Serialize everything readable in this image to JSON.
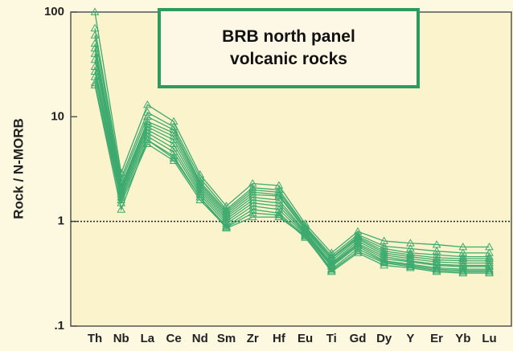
{
  "chart_data": {
    "type": "line",
    "title": "BRB north panel volcanic rocks",
    "y_label": "Rock / N-MORB",
    "categories": [
      "Th",
      "Nb",
      "La",
      "Ce",
      "Nd",
      "Sm",
      "Zr",
      "Hf",
      "Eu",
      "Ti",
      "Gd",
      "Dy",
      "Y",
      "Er",
      "Yb",
      "Lu"
    ],
    "log_y": true,
    "ylim": [
      0.1,
      100
    ],
    "yticks": [
      100,
      10,
      1,
      {
        "value": 0.1,
        "label": ".1"
      }
    ],
    "reference_line": 1,
    "color": "#3daa6e",
    "series": [
      {
        "values": [
          100,
          2.9,
          13,
          9,
          2.8,
          1.4,
          2.3,
          2.2,
          0.95,
          0.5,
          0.8,
          0.65,
          0.62,
          0.6,
          0.57,
          0.57
        ]
      },
      {
        "values": [
          70,
          2.6,
          11,
          8,
          2.6,
          1.3,
          2.1,
          2.0,
          0.9,
          0.47,
          0.75,
          0.58,
          0.55,
          0.52,
          0.5,
          0.5
        ]
      },
      {
        "values": [
          60,
          2.4,
          10,
          7.5,
          2.4,
          1.25,
          2.0,
          1.9,
          0.88,
          0.45,
          0.72,
          0.55,
          0.5,
          0.48,
          0.46,
          0.46
        ]
      },
      {
        "values": [
          50,
          2.2,
          9,
          7,
          2.3,
          1.2,
          1.9,
          1.8,
          0.85,
          0.44,
          0.7,
          0.52,
          0.48,
          0.45,
          0.44,
          0.44
        ]
      },
      {
        "values": [
          45,
          2.1,
          8.5,
          6.5,
          2.2,
          1.15,
          1.8,
          1.75,
          0.83,
          0.42,
          0.68,
          0.5,
          0.46,
          0.43,
          0.42,
          0.42
        ]
      },
      {
        "values": [
          40,
          2.0,
          8,
          6,
          2.1,
          1.1,
          1.7,
          1.6,
          0.8,
          0.4,
          0.65,
          0.48,
          0.44,
          0.41,
          0.4,
          0.4
        ]
      },
      {
        "values": [
          35,
          1.9,
          7.5,
          5.5,
          2.0,
          1.05,
          1.6,
          1.5,
          0.78,
          0.39,
          0.62,
          0.46,
          0.42,
          0.39,
          0.38,
          0.38
        ]
      },
      {
        "values": [
          30,
          1.8,
          7,
          5,
          1.9,
          1.0,
          1.5,
          1.4,
          0.76,
          0.38,
          0.6,
          0.44,
          0.41,
          0.38,
          0.37,
          0.37
        ]
      },
      {
        "values": [
          27,
          1.7,
          6.5,
          4.6,
          1.8,
          0.95,
          1.4,
          1.3,
          0.74,
          0.37,
          0.58,
          0.42,
          0.39,
          0.36,
          0.35,
          0.35
        ]
      },
      {
        "values": [
          24,
          1.6,
          6,
          4.2,
          1.7,
          0.9,
          1.3,
          1.2,
          0.72,
          0.35,
          0.55,
          0.41,
          0.38,
          0.35,
          0.34,
          0.34
        ]
      },
      {
        "values": [
          21,
          1.5,
          5.5,
          3.8,
          1.6,
          0.88,
          1.2,
          1.15,
          0.7,
          0.34,
          0.52,
          0.4,
          0.37,
          0.34,
          0.33,
          0.33
        ]
      },
      {
        "values": [
          20,
          1.3,
          6,
          4,
          1.7,
          0.86,
          1.1,
          1.1,
          0.72,
          0.33,
          0.5,
          0.38,
          0.36,
          0.33,
          0.32,
          0.32
        ]
      }
    ]
  }
}
